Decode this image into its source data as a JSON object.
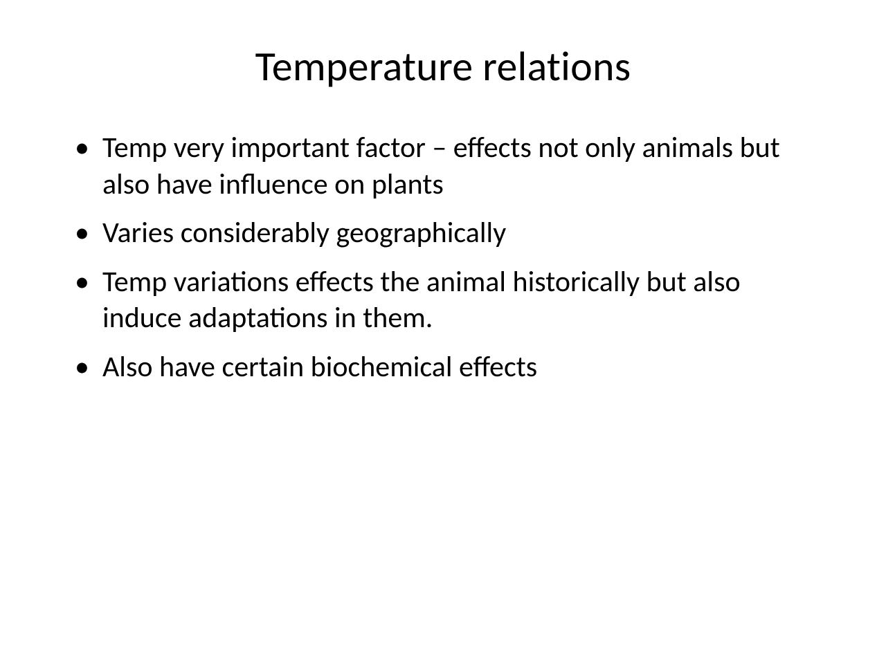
{
  "slide": {
    "title": "Temperature relations",
    "title_fontsize": 60,
    "title_color": "#000000",
    "background_color": "#ffffff",
    "bullets": [
      "Temp very important factor – effects not only animals but also have influence on plants",
      "Varies considerably geographically",
      "Temp variations effects the animal historically but also induce adaptations in them.",
      "Also have certain biochemical effects"
    ],
    "bullet_fontsize": 42,
    "bullet_color": "#000000",
    "bullet_marker": "•",
    "font_family": "Calibri"
  }
}
